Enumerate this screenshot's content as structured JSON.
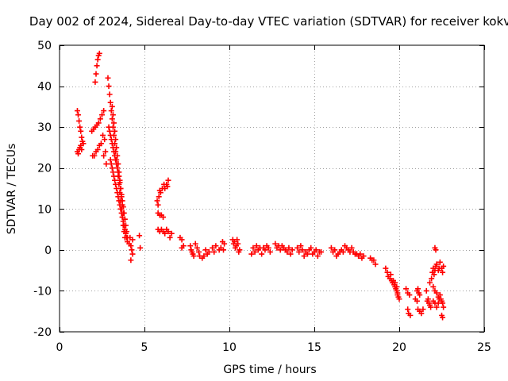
{
  "chart_data": {
    "type": "scatter",
    "title": "Day 002 of 2024, Sidereal Day-to-day VTEC variation (SDTVAR) for receiver kokv",
    "xlabel": "GPS time / hours",
    "ylabel": "SDTVAR / TECUs",
    "xlim": [
      0,
      25
    ],
    "ylim": [
      -20,
      50
    ],
    "xticks": [
      0,
      5,
      10,
      15,
      20,
      25
    ],
    "yticks": [
      -20,
      -10,
      0,
      10,
      20,
      30,
      40,
      50
    ],
    "grid": true,
    "marker": "+",
    "color": "#ff0000",
    "series": [
      {
        "name": "SDTVAR",
        "points": [
          [
            1.05,
            34.0
          ],
          [
            1.1,
            33.0
          ],
          [
            1.15,
            31.5
          ],
          [
            1.2,
            30.0
          ],
          [
            1.25,
            29.0
          ],
          [
            1.3,
            27.5
          ],
          [
            1.35,
            26.5
          ],
          [
            1.4,
            26.0
          ],
          [
            1.05,
            24.0
          ],
          [
            1.1,
            23.5
          ],
          [
            1.15,
            24.5
          ],
          [
            1.2,
            25.0
          ],
          [
            1.25,
            25.5
          ],
          [
            1.3,
            24.5
          ],
          [
            1.9,
            29.0
          ],
          [
            2.0,
            29.5
          ],
          [
            2.1,
            30.0
          ],
          [
            2.2,
            30.5
          ],
          [
            2.3,
            31.0
          ],
          [
            2.4,
            32.0
          ],
          [
            2.5,
            33.0
          ],
          [
            2.6,
            34.0
          ],
          [
            1.95,
            23.0
          ],
          [
            2.05,
            23.0
          ],
          [
            2.15,
            24.0
          ],
          [
            2.25,
            24.5
          ],
          [
            2.35,
            25.5
          ],
          [
            2.45,
            26.0
          ],
          [
            2.1,
            41.0
          ],
          [
            2.15,
            43.0
          ],
          [
            2.2,
            45.0
          ],
          [
            2.25,
            46.5
          ],
          [
            2.3,
            47.5
          ],
          [
            2.35,
            48.0
          ],
          [
            2.55,
            28.0
          ],
          [
            2.65,
            27.0
          ],
          [
            2.7,
            24.0
          ],
          [
            2.75,
            21.0
          ],
          [
            2.6,
            23.0
          ],
          [
            2.85,
            42.0
          ],
          [
            2.9,
            40.0
          ],
          [
            2.95,
            38.0
          ],
          [
            3.0,
            36.0
          ],
          [
            3.05,
            34.0
          ],
          [
            3.1,
            32.0
          ],
          [
            3.15,
            30.0
          ],
          [
            3.2,
            28.0
          ],
          [
            3.25,
            26.0
          ],
          [
            3.3,
            24.0
          ],
          [
            3.35,
            22.0
          ],
          [
            3.4,
            20.0
          ],
          [
            3.45,
            18.0
          ],
          [
            3.5,
            16.0
          ],
          [
            3.55,
            14.0
          ],
          [
            3.6,
            12.0
          ],
          [
            3.65,
            10.0
          ],
          [
            3.7,
            8.0
          ],
          [
            3.75,
            6.0
          ],
          [
            3.8,
            4.5
          ],
          [
            3.85,
            3.0
          ],
          [
            2.9,
            30.0
          ],
          [
            2.95,
            29.0
          ],
          [
            3.0,
            28.0
          ],
          [
            3.05,
            27.0
          ],
          [
            3.1,
            26.0
          ],
          [
            3.15,
            25.0
          ],
          [
            3.2,
            24.0
          ],
          [
            3.25,
            23.0
          ],
          [
            3.3,
            22.0
          ],
          [
            3.35,
            21.0
          ],
          [
            3.4,
            20.0
          ],
          [
            3.45,
            19.0
          ],
          [
            3.5,
            18.0
          ],
          [
            3.55,
            16.5
          ],
          [
            3.6,
            15.0
          ],
          [
            3.65,
            13.5
          ],
          [
            3.7,
            12.0
          ],
          [
            3.75,
            10.5
          ],
          [
            3.8,
            9.0
          ],
          [
            3.85,
            7.5
          ],
          [
            3.9,
            6.0
          ],
          [
            3.95,
            4.5
          ],
          [
            4.0,
            3.0
          ],
          [
            3.0,
            22.0
          ],
          [
            3.05,
            21.0
          ],
          [
            3.1,
            20.0
          ],
          [
            3.15,
            19.0
          ],
          [
            3.2,
            18.0
          ],
          [
            3.25,
            17.0
          ],
          [
            3.3,
            16.0
          ],
          [
            3.35,
            15.0
          ],
          [
            3.4,
            14.0
          ],
          [
            3.45,
            13.0
          ],
          [
            3.5,
            12.0
          ],
          [
            3.55,
            11.0
          ],
          [
            3.6,
            10.0
          ],
          [
            3.65,
            9.0
          ],
          [
            3.7,
            8.0
          ],
          [
            3.75,
            7.0
          ],
          [
            3.8,
            6.0
          ],
          [
            3.85,
            5.0
          ],
          [
            3.9,
            4.0
          ],
          [
            3.95,
            3.0
          ],
          [
            3.1,
            35.0
          ],
          [
            3.15,
            33.0
          ],
          [
            3.2,
            31.0
          ],
          [
            3.25,
            29.0
          ],
          [
            3.3,
            27.0
          ],
          [
            3.35,
            25.0
          ],
          [
            3.4,
            23.0
          ],
          [
            3.45,
            21.0
          ],
          [
            3.5,
            19.0
          ],
          [
            3.55,
            17.0
          ],
          [
            3.6,
            15.0
          ],
          [
            3.65,
            13.0
          ],
          [
            3.7,
            11.0
          ],
          [
            3.75,
            9.0
          ],
          [
            4.0,
            2.0
          ],
          [
            4.1,
            1.5
          ],
          [
            4.2,
            1.0
          ],
          [
            4.25,
            0.0
          ],
          [
            4.3,
            -1.0
          ],
          [
            4.2,
            -2.5
          ],
          [
            4.3,
            2.5
          ],
          [
            4.15,
            3.0
          ],
          [
            4.7,
            3.5
          ],
          [
            4.75,
            0.5
          ],
          [
            5.75,
            12.0
          ],
          [
            5.85,
            13.0
          ],
          [
            5.95,
            14.0
          ],
          [
            6.05,
            15.0
          ],
          [
            6.15,
            16.0
          ],
          [
            6.2,
            15.0
          ],
          [
            5.8,
            11.0
          ],
          [
            5.9,
            14.5
          ],
          [
            6.4,
            17.0
          ],
          [
            6.3,
            16.0
          ],
          [
            6.35,
            15.5
          ],
          [
            5.8,
            9.0
          ],
          [
            5.9,
            8.5
          ],
          [
            6.0,
            8.5
          ],
          [
            6.1,
            8.0
          ],
          [
            5.8,
            5.0
          ],
          [
            5.9,
            4.5
          ],
          [
            6.0,
            5.0
          ],
          [
            6.1,
            4.5
          ],
          [
            6.2,
            4.0
          ],
          [
            6.3,
            5.0
          ],
          [
            6.4,
            4.5
          ],
          [
            6.5,
            3.0
          ],
          [
            6.6,
            4.0
          ],
          [
            7.1,
            3.0
          ],
          [
            7.2,
            2.5
          ],
          [
            7.2,
            0.5
          ],
          [
            7.3,
            1.0
          ],
          [
            7.7,
            1.0
          ],
          [
            7.75,
            0.0
          ],
          [
            7.8,
            -0.5
          ],
          [
            7.85,
            -1.0
          ],
          [
            7.9,
            -1.5
          ],
          [
            8.0,
            1.5
          ],
          [
            8.1,
            0.5
          ],
          [
            8.2,
            -0.5
          ],
          [
            8.25,
            -1.5
          ],
          [
            8.4,
            -2.0
          ],
          [
            8.5,
            -1.5
          ],
          [
            8.6,
            0.0
          ],
          [
            8.7,
            -1.0
          ],
          [
            8.8,
            -0.5
          ],
          [
            9.0,
            0.5
          ],
          [
            9.1,
            -0.5
          ],
          [
            9.2,
            1.0
          ],
          [
            9.4,
            0.0
          ],
          [
            9.5,
            0.5
          ],
          [
            9.6,
            2.0
          ],
          [
            9.7,
            1.5
          ],
          [
            9.65,
            0.0
          ],
          [
            10.2,
            2.5
          ],
          [
            10.25,
            1.5
          ],
          [
            10.3,
            2.0
          ],
          [
            10.35,
            0.5
          ],
          [
            10.4,
            1.0
          ],
          [
            10.45,
            2.5
          ],
          [
            10.5,
            1.5
          ],
          [
            10.55,
            -0.5
          ],
          [
            10.6,
            0.0
          ],
          [
            11.3,
            -1.0
          ],
          [
            11.4,
            0.5
          ],
          [
            11.5,
            -0.5
          ],
          [
            11.6,
            1.0
          ],
          [
            11.7,
            0.0
          ],
          [
            11.8,
            0.5
          ],
          [
            11.9,
            -1.0
          ],
          [
            12.0,
            0.5
          ],
          [
            12.1,
            0.0
          ],
          [
            12.2,
            1.0
          ],
          [
            12.3,
            0.5
          ],
          [
            12.4,
            -0.5
          ],
          [
            12.7,
            1.5
          ],
          [
            12.8,
            0.5
          ],
          [
            12.9,
            1.0
          ],
          [
            13.0,
            0.0
          ],
          [
            13.1,
            1.0
          ],
          [
            13.2,
            0.5
          ],
          [
            13.3,
            0.0
          ],
          [
            13.4,
            -0.5
          ],
          [
            13.5,
            0.5
          ],
          [
            13.6,
            -1.0
          ],
          [
            13.7,
            0.0
          ],
          [
            14.0,
            0.5
          ],
          [
            14.1,
            -0.5
          ],
          [
            14.2,
            1.0
          ],
          [
            14.3,
            0.0
          ],
          [
            14.4,
            -1.5
          ],
          [
            14.5,
            -0.5
          ],
          [
            14.6,
            -1.0
          ],
          [
            14.7,
            0.0
          ],
          [
            14.8,
            0.5
          ],
          [
            14.9,
            -1.0
          ],
          [
            15.0,
            -0.5
          ],
          [
            15.1,
            0.0
          ],
          [
            15.2,
            -1.5
          ],
          [
            15.3,
            -0.5
          ],
          [
            15.4,
            -0.5
          ],
          [
            16.0,
            0.5
          ],
          [
            16.1,
            -0.5
          ],
          [
            16.2,
            0.0
          ],
          [
            16.3,
            -1.5
          ],
          [
            16.4,
            -1.0
          ],
          [
            16.5,
            -0.5
          ],
          [
            16.6,
            0.0
          ],
          [
            16.7,
            -0.5
          ],
          [
            16.8,
            1.0
          ],
          [
            16.9,
            0.5
          ],
          [
            17.0,
            0.0
          ],
          [
            17.1,
            -0.5
          ],
          [
            17.2,
            0.5
          ],
          [
            17.3,
            -0.5
          ],
          [
            17.4,
            -1.0
          ],
          [
            17.5,
            -1.0
          ],
          [
            17.6,
            -1.5
          ],
          [
            17.7,
            -1.0
          ],
          [
            17.8,
            -2.0
          ],
          [
            17.9,
            -1.5
          ],
          [
            18.3,
            -2.0
          ],
          [
            18.4,
            -2.5
          ],
          [
            18.5,
            -2.5
          ],
          [
            18.6,
            -3.5
          ],
          [
            19.2,
            -4.5
          ],
          [
            19.3,
            -5.5
          ],
          [
            19.35,
            -6.5
          ],
          [
            19.45,
            -7.0
          ],
          [
            19.5,
            -6.0
          ],
          [
            19.55,
            -7.5
          ],
          [
            19.6,
            -8.0
          ],
          [
            19.7,
            -8.5
          ],
          [
            19.75,
            -9.0
          ],
          [
            19.8,
            -9.5
          ],
          [
            19.85,
            -10.0
          ],
          [
            19.9,
            -10.5
          ],
          [
            19.95,
            -11.5
          ],
          [
            20.0,
            -12.0
          ],
          [
            19.65,
            -7.5
          ],
          [
            19.75,
            -8.0
          ],
          [
            19.85,
            -9.0
          ],
          [
            19.9,
            -11.0
          ],
          [
            20.4,
            -9.5
          ],
          [
            20.5,
            -10.5
          ],
          [
            20.6,
            -11.0
          ],
          [
            20.5,
            -14.5
          ],
          [
            20.55,
            -15.5
          ],
          [
            20.65,
            -16.0
          ],
          [
            20.95,
            -12.0
          ],
          [
            21.05,
            -12.5
          ],
          [
            21.05,
            -10.0
          ],
          [
            21.1,
            -9.5
          ],
          [
            21.15,
            -10.5
          ],
          [
            21.2,
            -11.0
          ],
          [
            21.1,
            -14.5
          ],
          [
            21.2,
            -15.0
          ],
          [
            21.3,
            -15.5
          ],
          [
            21.4,
            -14.5
          ],
          [
            21.6,
            -10.0
          ],
          [
            21.65,
            -12.5
          ],
          [
            21.7,
            -12.0
          ],
          [
            21.75,
            -13.0
          ],
          [
            21.8,
            -13.5
          ],
          [
            21.85,
            -14.0
          ],
          [
            21.8,
            -8.0
          ],
          [
            21.9,
            -7.0
          ],
          [
            21.95,
            -5.5
          ],
          [
            22.0,
            -4.5
          ],
          [
            22.05,
            -6.0
          ],
          [
            22.1,
            -5.0
          ],
          [
            22.15,
            -4.0
          ],
          [
            22.2,
            -3.5
          ],
          [
            22.3,
            -5.0
          ],
          [
            22.35,
            -4.5
          ],
          [
            22.4,
            -3.0
          ],
          [
            22.1,
            0.5
          ],
          [
            22.15,
            0.0
          ],
          [
            22.0,
            -9.0
          ],
          [
            22.1,
            -10.0
          ],
          [
            22.2,
            -10.5
          ],
          [
            22.3,
            -11.5
          ],
          [
            22.0,
            -12.5
          ],
          [
            22.1,
            -13.0
          ],
          [
            22.2,
            -14.0
          ],
          [
            22.3,
            -13.0
          ],
          [
            22.35,
            -12.0
          ],
          [
            22.4,
            -11.0
          ],
          [
            22.45,
            -12.0
          ],
          [
            22.5,
            -12.5
          ],
          [
            22.55,
            -13.0
          ],
          [
            22.6,
            -14.0
          ],
          [
            22.5,
            -4.5
          ],
          [
            22.55,
            -5.5
          ],
          [
            22.6,
            -4.0
          ],
          [
            22.5,
            -16.0
          ],
          [
            22.55,
            -16.5
          ]
        ]
      }
    ]
  }
}
